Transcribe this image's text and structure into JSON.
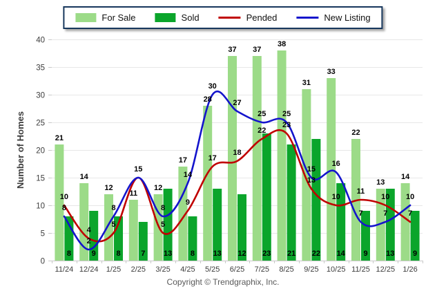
{
  "chart_data": {
    "type": "combo",
    "categories": [
      "11/24",
      "12/24",
      "1/25",
      "2/25",
      "3/25",
      "4/25",
      "5/25",
      "6/25",
      "7/25",
      "8/25",
      "9/25",
      "10/25",
      "11/25",
      "12/25",
      "1/26"
    ],
    "series": [
      {
        "name": "For Sale",
        "type": "bar",
        "color": "#9CDB88",
        "values": [
          21,
          14,
          12,
          11,
          12,
          17,
          28,
          37,
          37,
          38,
          31,
          33,
          22,
          13,
          14
        ]
      },
      {
        "name": "Sold",
        "type": "bar",
        "color": "#0BA52B",
        "values": [
          8,
          9,
          8,
          7,
          13,
          8,
          13,
          12,
          23,
          21,
          22,
          14,
          9,
          13,
          9
        ]
      },
      {
        "name": "Pended",
        "type": "line",
        "color": "#C00000",
        "values": [
          10,
          4,
          5,
          15,
          5,
          9,
          17,
          18,
          22,
          23,
          13,
          10,
          11,
          10,
          7
        ],
        "hidden_label_indices": [
          3
        ]
      },
      {
        "name": "New Listing",
        "type": "line",
        "color": "#1414CC",
        "values": [
          8,
          2,
          8,
          15,
          8,
          14,
          30,
          27,
          25,
          25,
          15,
          16,
          7,
          7,
          10
        ],
        "hidden_label_indices": []
      }
    ],
    "title": "",
    "xlabel": "",
    "ylabel": "Number of Homes",
    "ylim": [
      0,
      40
    ],
    "ytick_step": 5,
    "grid": true,
    "legend_position": "top"
  },
  "copyright": "Copyright © Trendgraphix, Inc."
}
